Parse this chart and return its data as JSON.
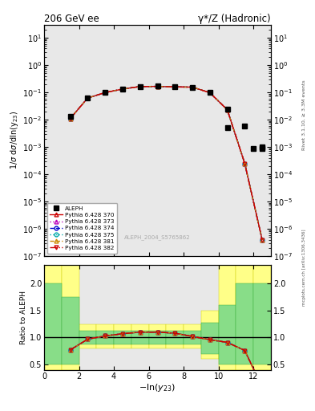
{
  "title_left": "206 GeV ee",
  "title_right": "γ*/Z (Hadronic)",
  "right_label_top": "Rivet 3.1.10, ≥ 3.3M events",
  "right_label_bot": "mcplots.cern.ch [arXiv:1306.3436]",
  "watermark": "ALEPH_2004_S5765862",
  "ylabel_main": "1/σ dσ/dln(y_{23})",
  "ylabel_ratio": "Ratio to ALEPH",
  "xlabel": "-ln(y_{23})",
  "ylim_main": [
    1e-07,
    30
  ],
  "ylim_ratio": [
    0.4,
    2.35
  ],
  "xlim": [
    0,
    13
  ],
  "x_data": [
    1.5,
    2.5,
    3.5,
    4.5,
    5.5,
    6.5,
    7.5,
    8.5,
    9.5,
    10.5,
    11.5,
    12.5
  ],
  "aleph_y": [
    0.013,
    0.063,
    0.098,
    0.128,
    0.163,
    0.168,
    0.16,
    0.155,
    0.098,
    0.025,
    0.006,
    0.001
  ],
  "aleph_extra_y_at_10p5": 0.005,
  "aleph_extra_y_at_12p0": 0.0009,
  "aleph_extra_y_at_12p5": 0.0009,
  "pythia_y": [
    0.011,
    0.062,
    0.098,
    0.132,
    0.163,
    0.165,
    0.158,
    0.155,
    0.097,
    0.023,
    0.00025,
    4e-07
  ],
  "ratio_y": [
    0.77,
    0.97,
    1.03,
    1.07,
    1.1,
    1.1,
    1.08,
    1.02,
    0.96,
    0.91,
    0.76,
    0.08
  ],
  "styles": [
    {
      "color": "#cc0000",
      "marker": "^",
      "ls": "-",
      "label": "Pythia 6.428 370"
    },
    {
      "color": "#bb00bb",
      "marker": "^",
      "ls": ":",
      "label": "Pythia 6.428 373"
    },
    {
      "color": "#0000cc",
      "marker": "o",
      "ls": "--",
      "label": "Pythia 6.428 374"
    },
    {
      "color": "#00aaaa",
      "marker": "o",
      "ls": ":",
      "label": "Pythia 6.428 375"
    },
    {
      "color": "#cc8800",
      "marker": "^",
      "ls": "--",
      "label": "Pythia 6.428 381"
    },
    {
      "color": "#cc0000",
      "marker": "v",
      "ls": "-.",
      "label": "Pythia 6.428 382"
    }
  ],
  "yellow_bins_x": [
    0,
    1,
    2,
    3,
    4,
    5,
    6,
    7,
    8,
    9,
    10,
    11,
    12
  ],
  "yellow_bins_lo": [
    0.4,
    0.4,
    0.8,
    0.8,
    0.8,
    0.8,
    0.8,
    0.8,
    0.8,
    0.6,
    0.4,
    0.4,
    0.4
  ],
  "yellow_bins_hi": [
    2.35,
    2.35,
    1.25,
    1.25,
    1.25,
    1.25,
    1.25,
    1.25,
    1.25,
    1.5,
    2.35,
    2.35,
    2.35
  ],
  "green_bins_lo": [
    0.5,
    0.5,
    0.87,
    0.87,
    0.87,
    0.87,
    0.87,
    0.87,
    0.87,
    0.7,
    0.5,
    0.5,
    0.5
  ],
  "green_bins_hi": [
    2.0,
    1.75,
    1.13,
    1.13,
    1.13,
    1.13,
    1.13,
    1.13,
    1.13,
    1.28,
    1.6,
    2.0,
    2.0
  ],
  "bg_color": "#e8e8e8"
}
